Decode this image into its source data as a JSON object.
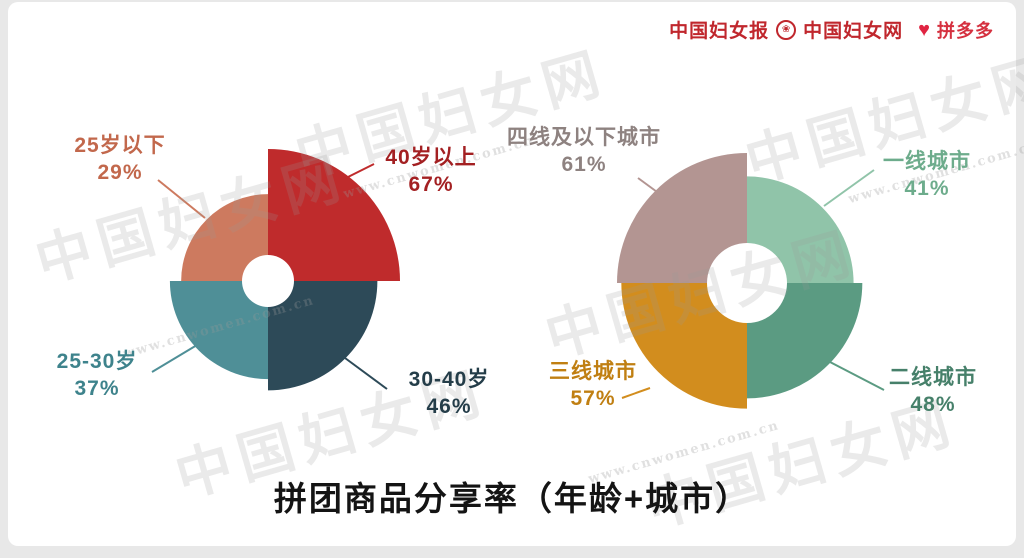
{
  "page": {
    "title": "拼团商品分享率（年龄+城市）",
    "background": "#e8e8e8",
    "card_background": "#ffffff"
  },
  "logos": {
    "news": "中国妇女报",
    "net": "中国妇女网",
    "pinduoduo": "拼多多"
  },
  "watermark": {
    "text": "中国妇女网",
    "url": "www.cnwomen.com.cn"
  },
  "chart_data": [
    {
      "type": "polar-area",
      "group": "年龄",
      "legend_position": "outside-callouts",
      "segments": [
        {
          "label": "25岁以下",
          "value": 29,
          "pct": "29%",
          "quadrant": "top-left",
          "color": "#cd7a5f",
          "text_color": "#c2684c"
        },
        {
          "label": "40岁以上",
          "value": 67,
          "pct": "67%",
          "quadrant": "top-right",
          "color": "#bf2b2c",
          "text_color": "#a32022"
        },
        {
          "label": "30-40岁",
          "value": 46,
          "pct": "46%",
          "quadrant": "bottom-right",
          "color": "#2d4a58",
          "text_color": "#243d49"
        },
        {
          "label": "25-30岁",
          "value": 37,
          "pct": "37%",
          "quadrant": "bottom-left",
          "color": "#4f8f97",
          "text_color": "#3e838c"
        }
      ]
    },
    {
      "type": "polar-area",
      "group": "城市",
      "legend_position": "outside-callouts",
      "segments": [
        {
          "label": "四线及以下城市",
          "value": 61,
          "pct": "61%",
          "quadrant": "top-left",
          "color": "#b39592",
          "text_color": "#8e8280"
        },
        {
          "label": "一线城市",
          "value": 41,
          "pct": "41%",
          "quadrant": "top-right",
          "color": "#90c4a9",
          "text_color": "#6dac8c"
        },
        {
          "label": "二线城市",
          "value": 48,
          "pct": "48%",
          "quadrant": "bottom-right",
          "color": "#5b9b82",
          "text_color": "#46806a"
        },
        {
          "label": "三线城市",
          "value": 57,
          "pct": "57%",
          "quadrant": "bottom-left",
          "color": "#d28d1e",
          "text_color": "#c07f12"
        }
      ]
    }
  ]
}
